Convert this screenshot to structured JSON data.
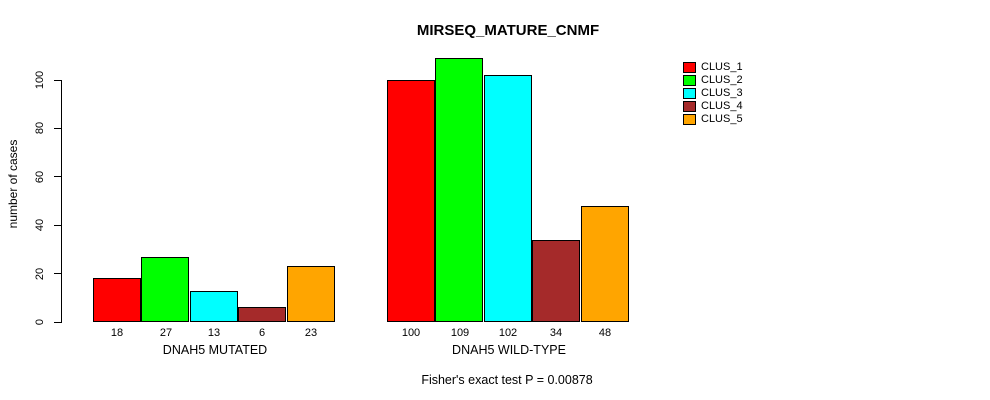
{
  "chart_data": {
    "type": "bar",
    "title": "MIRSEQ_MATURE_CNMF",
    "ylabel": "number of cases",
    "xlabel": "",
    "categories": [
      "DNAH5 MUTATED",
      "DNAH5 WILD-TYPE"
    ],
    "series": [
      {
        "name": "CLUS_1",
        "color": "#FF0000",
        "values": [
          18,
          100
        ]
      },
      {
        "name": "CLUS_2",
        "color": "#00FF00",
        "values": [
          27,
          109
        ]
      },
      {
        "name": "CLUS_3",
        "color": "#00FFFF",
        "values": [
          13,
          102
        ]
      },
      {
        "name": "CLUS_4",
        "color": "#A52A2A",
        "values": [
          6,
          34
        ]
      },
      {
        "name": "CLUS_5",
        "color": "#FFA500",
        "values": [
          23,
          48
        ]
      }
    ],
    "bar_value_labels": [
      [
        "18",
        "27",
        "13",
        "6",
        "23"
      ],
      [
        "100",
        "109",
        "102",
        "34",
        "48"
      ]
    ],
    "yticks": [
      0,
      20,
      40,
      60,
      80,
      100
    ],
    "ylim": [
      0,
      109
    ],
    "grid": false,
    "legend_position": "top-right",
    "annotation": "Fisher's exact test P = 0.00878"
  },
  "colors": {
    "background": "#FFFFFF",
    "axis": "#000000",
    "text": "#000000"
  }
}
